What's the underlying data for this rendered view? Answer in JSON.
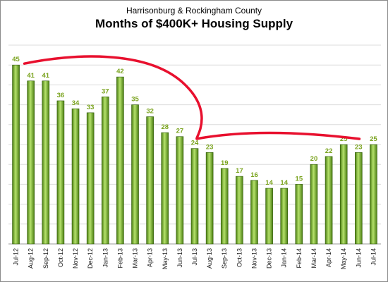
{
  "chart_data": {
    "type": "bar",
    "subtitle": "Harrisonburg & Rockingham County",
    "title": "Months of $400K+ Housing Supply",
    "xlabel": "",
    "ylabel": "",
    "ylim": [
      0,
      50
    ],
    "grid": true,
    "categories": [
      "Jul-12",
      "Aug-12",
      "Sep-12",
      "Oct-12",
      "Nov-12",
      "Dec-12",
      "Jan-13",
      "Feb-13",
      "Mar-13",
      "Apr-13",
      "May-13",
      "Jun-13",
      "Jul-13",
      "Aug-13",
      "Sep-13",
      "Oct-13",
      "Nov-13",
      "Dec-13",
      "Jan-14",
      "Feb-14",
      "Mar-14",
      "Apr-14",
      "May-14",
      "Jun-14",
      "Jul-14"
    ],
    "values": [
      45,
      41,
      41,
      36,
      34,
      33,
      37,
      42,
      35,
      32,
      28,
      27,
      24,
      23,
      19,
      17,
      16,
      14,
      14,
      15,
      20,
      22,
      25,
      23,
      25
    ],
    "colors": {
      "bar_light": "#b5e26b",
      "bar_dark": "#4a7d12",
      "label": "#7aa31e",
      "annotation": "#e8102e"
    }
  }
}
